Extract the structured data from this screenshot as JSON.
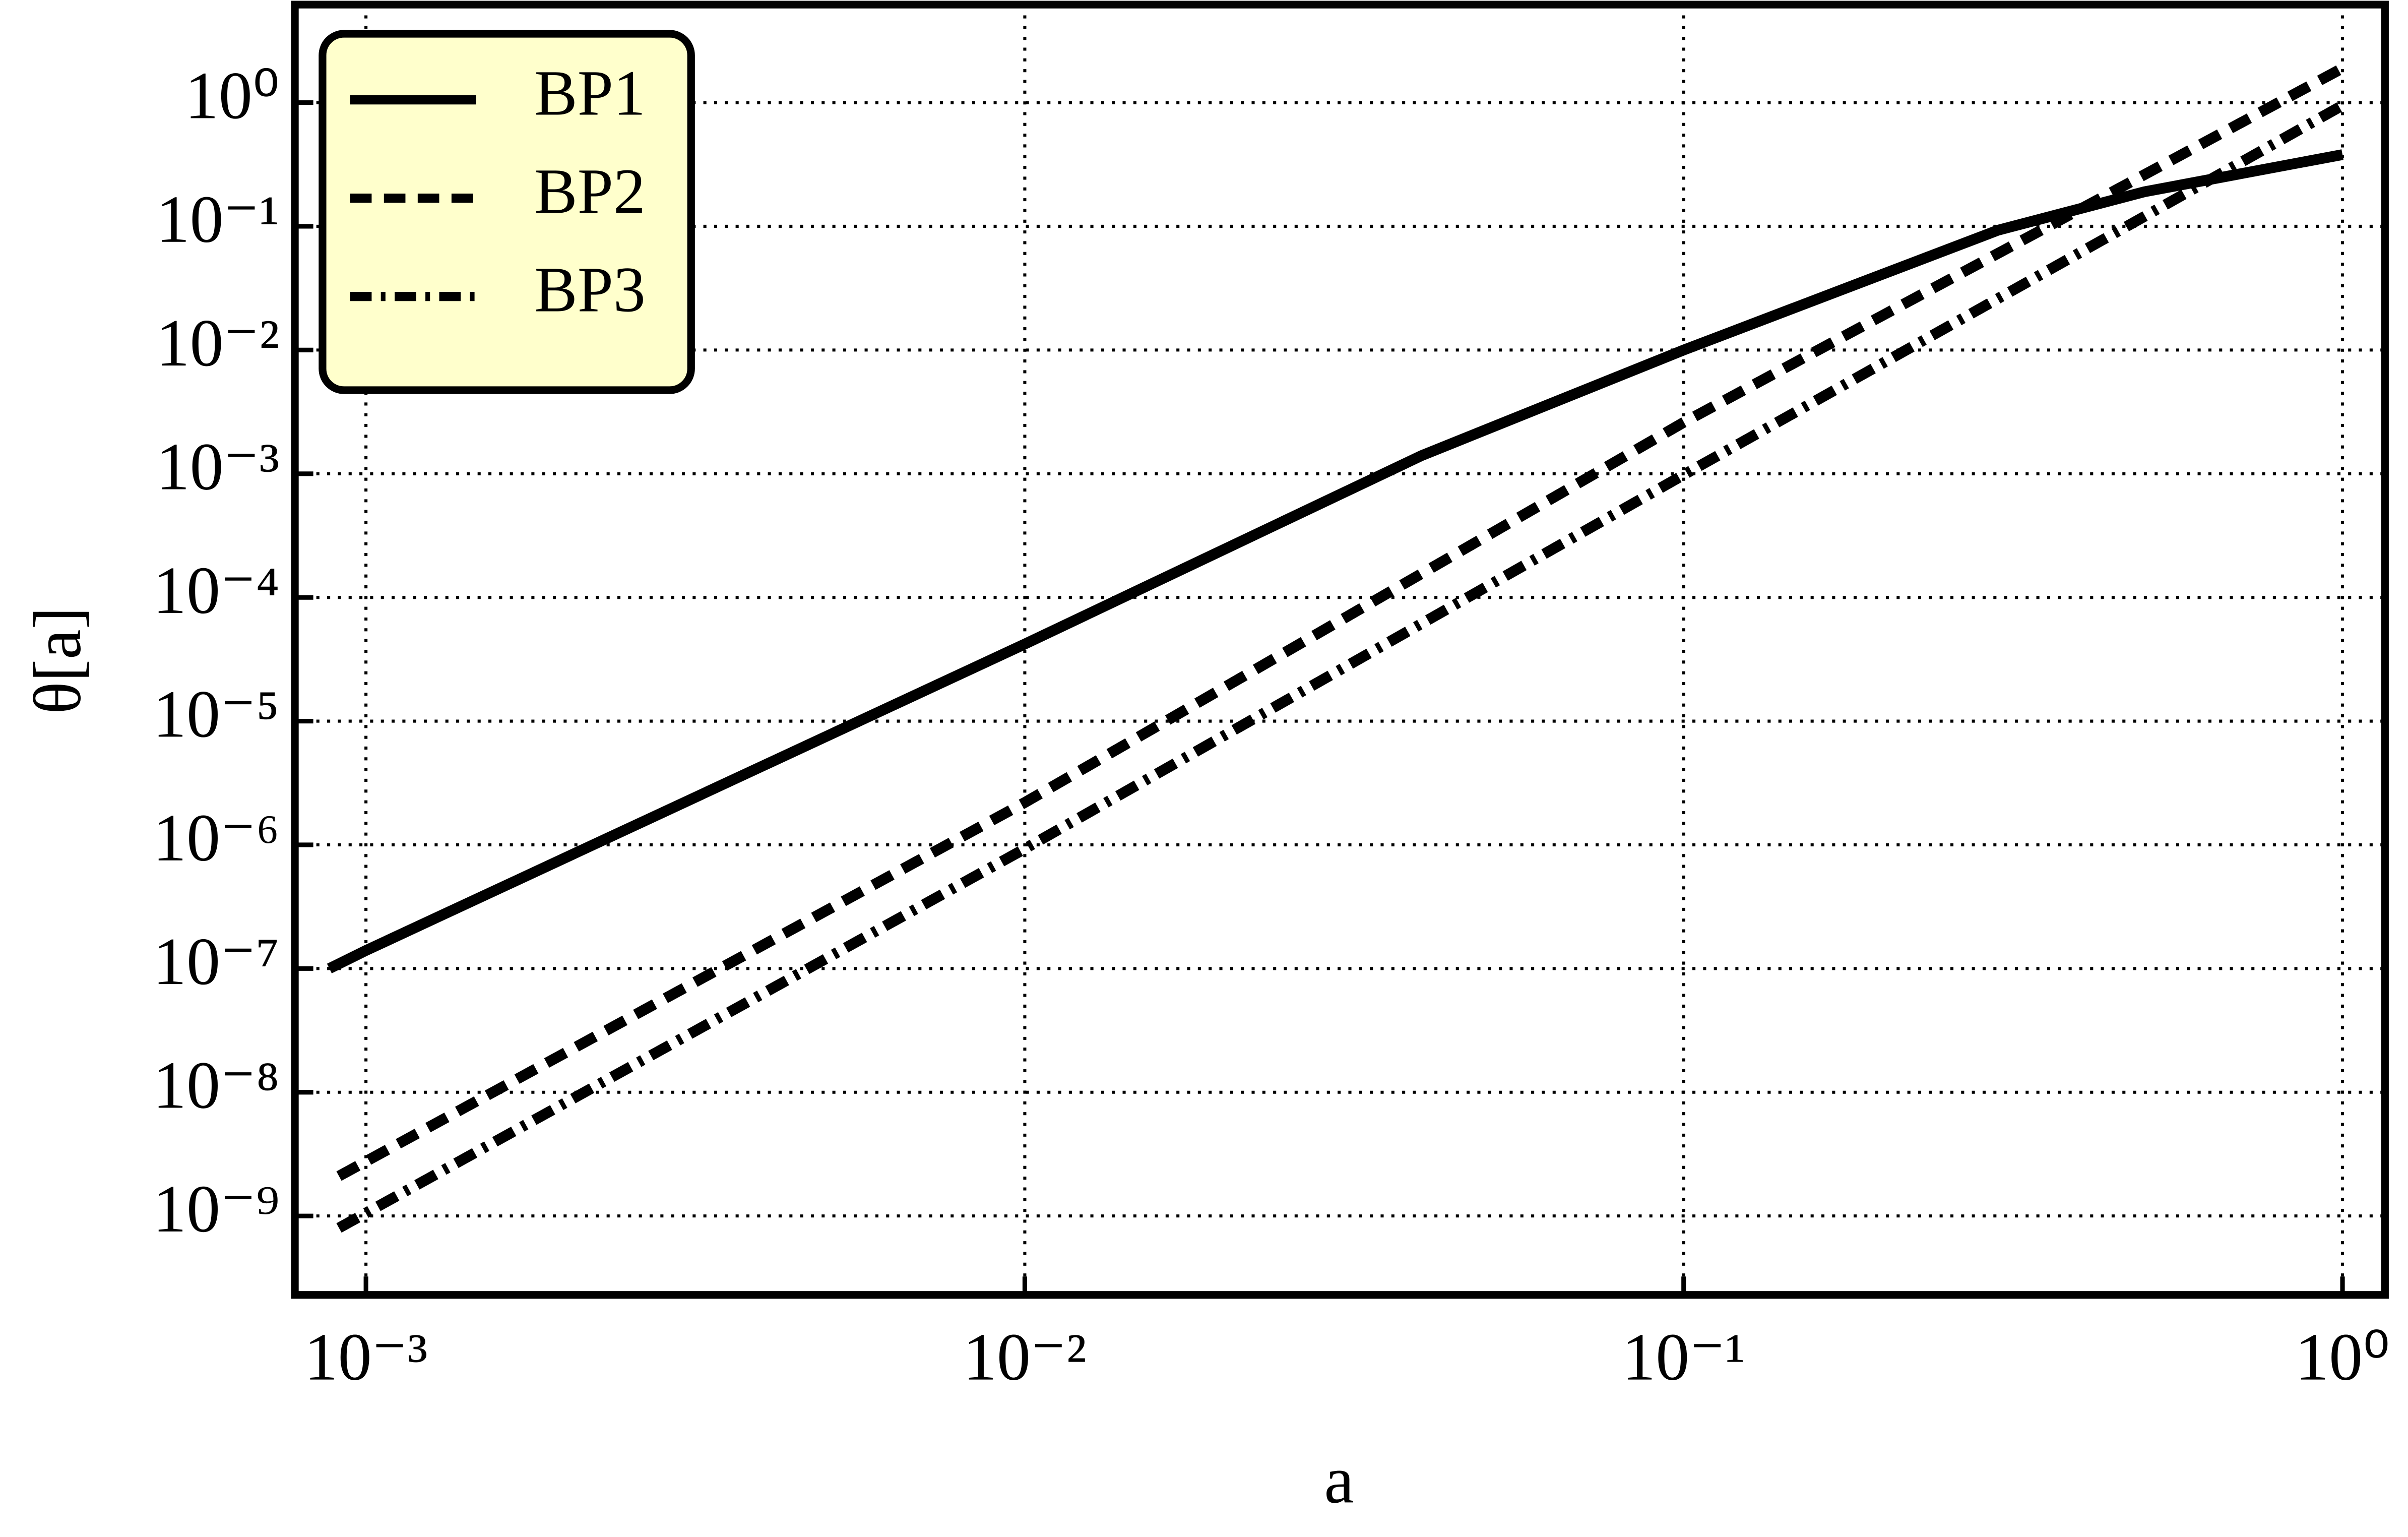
{
  "chart_data": {
    "type": "line",
    "xlabel": "a",
    "ylabel": "θ[a]",
    "xlog": true,
    "ylog": true,
    "grid": true,
    "legend": "upper left",
    "xlim": [
      0.00078,
      1.16
    ],
    "ylim": [
      2.3e-10,
      6.2
    ],
    "xticks": [
      {
        "value": 0.001,
        "label": "10⁻³"
      },
      {
        "value": 0.01,
        "label": "10⁻²"
      },
      {
        "value": 0.1,
        "label": "10⁻¹"
      },
      {
        "value": 1,
        "label": "10⁰"
      }
    ],
    "yticks": [
      {
        "value": 1e-09,
        "label": "10⁻⁹"
      },
      {
        "value": 1e-08,
        "label": "10⁻⁸"
      },
      {
        "value": 1e-07,
        "label": "10⁻⁷"
      },
      {
        "value": 1e-06,
        "label": "10⁻⁶"
      },
      {
        "value": 1e-05,
        "label": "10⁻⁵"
      },
      {
        "value": 0.0001,
        "label": "10⁻⁴"
      },
      {
        "value": 0.001,
        "label": "10⁻³"
      },
      {
        "value": 0.01,
        "label": "10⁻²"
      },
      {
        "value": 0.1,
        "label": "10⁻¹"
      },
      {
        "value": 1,
        "label": "10⁰"
      }
    ],
    "series": [
      {
        "name": "BP1",
        "color": "#000000",
        "dash": "solid",
        "x": [
          0.00088,
          0.001,
          0.01,
          0.04,
          0.1,
          0.3,
          0.5,
          1
        ],
        "values": [
          1e-07,
          1.4e-07,
          4.2e-05,
          0.0014,
          0.01,
          0.093,
          0.19,
          0.38
        ]
      },
      {
        "name": "BP2",
        "color": "#000000",
        "dash": "dashed",
        "x": [
          0.00091,
          0.01,
          0.1,
          1
        ],
        "values": [
          2.1e-09,
          2.2e-06,
          0.0026,
          1.9
        ]
      },
      {
        "name": "BP3",
        "color": "#000000",
        "dash": "dashdot",
        "x": [
          0.00091,
          0.01,
          0.1,
          1
        ],
        "values": [
          8e-10,
          9.3e-07,
          0.00098,
          0.95
        ]
      }
    ]
  }
}
